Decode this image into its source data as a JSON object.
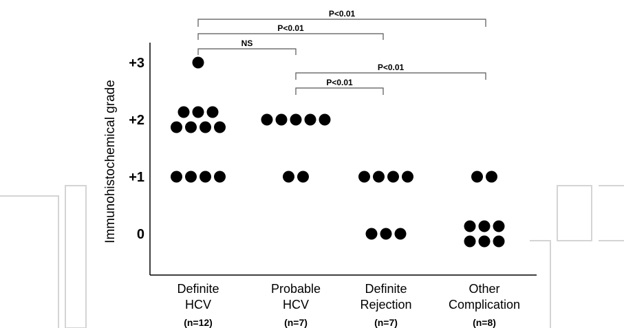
{
  "chart_data": {
    "type": "scatter",
    "title": "",
    "xlabel": "",
    "ylabel": "Immunohistochemical grade",
    "y_ticks": [
      "+3",
      "+2",
      "+1",
      "0"
    ],
    "y_tick_values": [
      3,
      2,
      1,
      0
    ],
    "ylim": [
      -0.6,
      3.3
    ],
    "grid": false,
    "categories": [
      {
        "line1": "Definite",
        "line2": "HCV",
        "n": "(n=12)"
      },
      {
        "line1": "Probable",
        "line2": "HCV",
        "n": "(n=7)"
      },
      {
        "line1": "Definite",
        "line2": "Rejection",
        "n": "(n=7)"
      },
      {
        "line1": "Other",
        "line2": "Complication",
        "n": "(n=8)"
      }
    ],
    "series": [
      {
        "points": [
          {
            "grade": 3,
            "count": 1
          },
          {
            "grade": 2,
            "count": 7
          },
          {
            "grade": 1,
            "count": 4
          }
        ]
      },
      {
        "points": [
          {
            "grade": 2,
            "count": 5
          },
          {
            "grade": 1,
            "count": 2
          }
        ]
      },
      {
        "points": [
          {
            "grade": 1,
            "count": 4
          },
          {
            "grade": 0,
            "count": 3
          }
        ]
      },
      {
        "points": [
          {
            "grade": 1,
            "count": 2
          },
          {
            "grade": 0,
            "count": 6
          }
        ]
      }
    ],
    "annotations": [
      {
        "from": 0,
        "to": 3,
        "label": "P<0.01"
      },
      {
        "from": 0,
        "to": 2,
        "label": "P<0.01"
      },
      {
        "from": 0,
        "to": 1,
        "label": "NS"
      },
      {
        "from": 1,
        "to": 3,
        "label": "P<0.01"
      },
      {
        "from": 1,
        "to": 2,
        "label": "P<0.01"
      }
    ]
  }
}
